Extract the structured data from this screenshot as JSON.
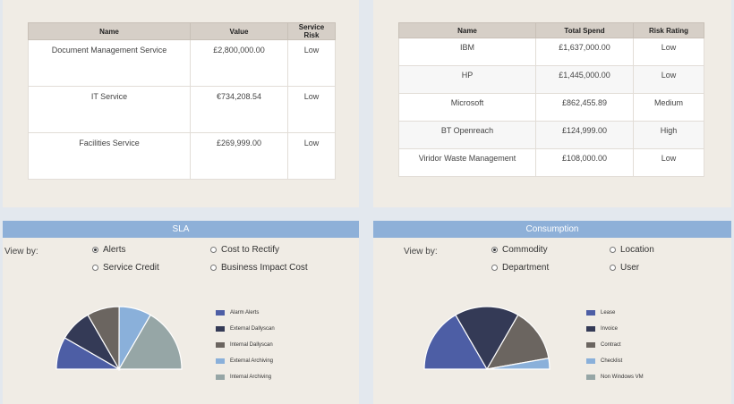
{
  "services_table": {
    "headers": [
      "Name",
      "Value",
      "Service Risk"
    ],
    "rows": [
      [
        "Document Management Service",
        "£2,800,000.00",
        "Low"
      ],
      [
        "IT Service",
        "€734,208.54",
        "Low"
      ],
      [
        "Facilities Service",
        "£269,999.00",
        "Low"
      ]
    ]
  },
  "suppliers_table": {
    "headers": [
      "Name",
      "Total Spend",
      "Risk Rating"
    ],
    "rows": [
      [
        "IBM",
        "£1,637,000.00",
        "Low"
      ],
      [
        "HP",
        "£1,445,000.00",
        "Low"
      ],
      [
        "Microsoft",
        "£862,455.89",
        "Medium"
      ],
      [
        "BT Openreach",
        "£124,999.00",
        "High"
      ],
      [
        "Viridor Waste Management",
        "£108,000.00",
        "Low"
      ]
    ]
  },
  "sla": {
    "title": "SLA",
    "view_by_label": "View by:",
    "options": [
      {
        "label": "Alerts",
        "selected": true
      },
      {
        "label": "Cost to Rectify",
        "selected": false
      },
      {
        "label": "Service Credit",
        "selected": false
      },
      {
        "label": "Business Impact Cost",
        "selected": false
      }
    ]
  },
  "consumption": {
    "title": "Consumption",
    "view_by_label": "View by:",
    "options": [
      {
        "label": "Commodity",
        "selected": true
      },
      {
        "label": "Location",
        "selected": false
      },
      {
        "label": "Department",
        "selected": false
      },
      {
        "label": "User",
        "selected": false
      }
    ]
  },
  "chart_data": [
    {
      "type": "pie",
      "style": "semi-circle",
      "legend_position": "right",
      "slices": [
        {
          "label": "Alarm Alerts",
          "value": 16.7,
          "color": "#4d5ea5"
        },
        {
          "label": "External Dallyscan",
          "value": 16.7,
          "color": "#343a56"
        },
        {
          "label": "Internal Dallyscan",
          "value": 16.7,
          "color": "#6b6560"
        },
        {
          "label": "External Archiving",
          "value": 16.7,
          "color": "#8ab0da"
        },
        {
          "label": "Internal Archiving",
          "value": 33.3,
          "color": "#96a6a6"
        }
      ]
    },
    {
      "type": "pie",
      "style": "semi-circle",
      "legend_position": "right",
      "slices": [
        {
          "label": "Lease",
          "value": 33.3,
          "color": "#4d5ea5"
        },
        {
          "label": "Invoice",
          "value": 33.3,
          "color": "#343a56"
        },
        {
          "label": "Contract",
          "value": 27.8,
          "color": "#6b6560"
        },
        {
          "label": "Checklist",
          "value": 5.6,
          "color": "#8ab0da"
        },
        {
          "label": "Non Windows VM",
          "value": 0,
          "color": "#96a6a6"
        }
      ]
    }
  ]
}
